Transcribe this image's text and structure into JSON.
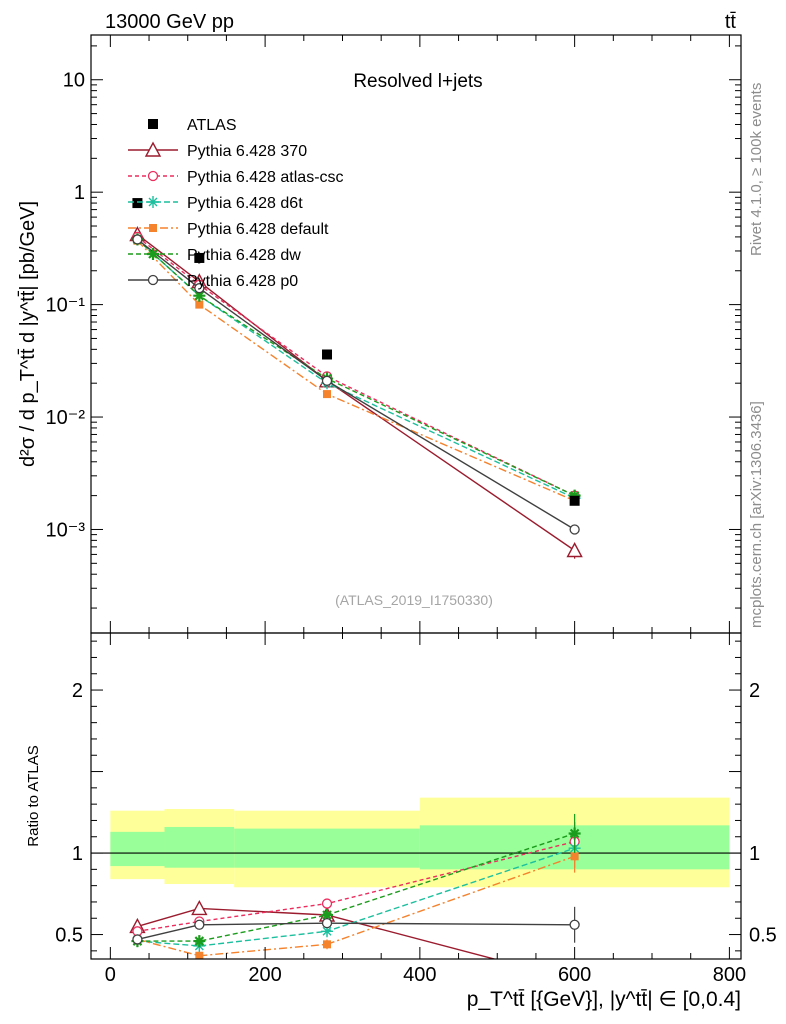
{
  "header": {
    "energy": "13000 GeV pp",
    "process": "tt̄"
  },
  "side_labels": {
    "rivet": "Rivet 4.1.0, ≥ 100k events",
    "mcplots": "mcplots.cern.ch [arXiv:1306.3436]"
  },
  "chart_data": [
    {
      "type": "line",
      "title": "Resolved l+jets",
      "watermark": "(ATLAS_2019_I1750330)",
      "ylabel": "d²σ / d p_T^tt̄ d |y^tt̄| [pb/GeV]",
      "yscale": "log",
      "ylim": [
        0.00012,
        25
      ],
      "xlim": [
        -25,
        815
      ],
      "ytick_labels": [
        "10⁻³",
        "10⁻²",
        "10⁻¹",
        "1",
        "10"
      ],
      "ytick_values": [
        0.001,
        0.01,
        0.1,
        1,
        10
      ],
      "legend_position": "top-left",
      "x": [
        35,
        115,
        280,
        600
      ],
      "data": {
        "name": "ATLAS",
        "values": [
          0.8,
          0.26,
          0.036,
          0.0018
        ]
      },
      "series": [
        {
          "name": "Pythia 6.428 370",
          "color": "#9b1c2e",
          "dash": "",
          "marker": "triangle",
          "values": [
            0.42,
            0.16,
            0.021,
            0.00065
          ],
          "errors": [
            0,
            0,
            0,
            0.0001
          ]
        },
        {
          "name": "Pythia 6.428 atlas-csc",
          "color": "#ec2d5e",
          "dash": "4,3",
          "marker": "circle-open",
          "values": [
            0.4,
            0.15,
            0.023,
            0.002
          ],
          "errors": [
            0,
            0,
            0,
            0
          ]
        },
        {
          "name": "Pythia 6.428 d6t",
          "color": "#1cbf9e",
          "dash": "6,3",
          "marker": "star",
          "values": [
            0.38,
            0.12,
            0.02,
            0.0019
          ],
          "errors": [
            0,
            0,
            0,
            0
          ]
        },
        {
          "name": "Pythia 6.428 default",
          "color": "#f5822c",
          "dash": "8,3,2,3",
          "marker": "square",
          "values": [
            0.37,
            0.1,
            0.016,
            0.0018
          ],
          "errors": [
            0,
            0,
            0,
            0
          ]
        },
        {
          "name": "Pythia 6.428 dw",
          "color": "#1c9c1c",
          "dash": "5,3",
          "marker": "star-filled",
          "values": [
            0.38,
            0.12,
            0.022,
            0.002
          ],
          "errors": [
            0,
            0,
            0,
            0
          ]
        },
        {
          "name": "Pythia 6.428 p0",
          "color": "#404040",
          "dash": "",
          "marker": "circle-open",
          "values": [
            0.38,
            0.14,
            0.021,
            0.001
          ],
          "errors": [
            0,
            0,
            0,
            8e-05
          ]
        }
      ]
    },
    {
      "type": "line",
      "title": "Ratio to ATLAS",
      "ylabel": "Ratio to ATLAS",
      "xlabel": "p_T^tt̄ [{GeV}], |y^tt̄| ∈ [0,0.4]",
      "ylim": [
        0.35,
        2.35
      ],
      "xlim": [
        -25,
        815
      ],
      "ytick_values": [
        0.5,
        1,
        2
      ],
      "ytick_labels": [
        "0.5",
        "1",
        "2"
      ],
      "xtick_values": [
        0,
        200,
        400,
        600,
        800
      ],
      "xtick_labels": [
        "0",
        "200",
        "400",
        "600",
        "800"
      ],
      "x": [
        35,
        115,
        280,
        600
      ],
      "bands": {
        "bins": [
          [
            0,
            70
          ],
          [
            70,
            160
          ],
          [
            160,
            400
          ],
          [
            400,
            800
          ]
        ],
        "yellow": [
          [
            0.84,
            1.26
          ],
          [
            0.81,
            1.27
          ],
          [
            0.79,
            1.26
          ],
          [
            0.79,
            1.34
          ]
        ],
        "green": [
          [
            0.92,
            1.13
          ],
          [
            0.91,
            1.16
          ],
          [
            0.91,
            1.15
          ],
          [
            0.9,
            1.17
          ]
        ]
      },
      "series": [
        {
          "name": "Pythia 6.428 370",
          "values": [
            0.55,
            0.66,
            0.62,
            0.22
          ],
          "errors": [
            0.01,
            0.01,
            0.02,
            0.05
          ]
        },
        {
          "name": "Pythia 6.428 atlas-csc",
          "values": [
            0.52,
            0.58,
            0.69,
            1.07
          ],
          "errors": [
            0.01,
            0.02,
            0.03,
            0.12
          ]
        },
        {
          "name": "Pythia 6.428 d6t",
          "values": [
            0.46,
            0.43,
            0.52,
            1.03
          ],
          "errors": [
            0.01,
            0.02,
            0.03,
            0.12
          ]
        },
        {
          "name": "Pythia 6.428 default",
          "values": [
            0.47,
            0.37,
            0.44,
            0.98
          ],
          "errors": [
            0.01,
            0.02,
            0.03,
            0.1
          ]
        },
        {
          "name": "Pythia 6.428 dw",
          "values": [
            0.46,
            0.46,
            0.62,
            1.12
          ],
          "errors": [
            0.01,
            0.02,
            0.03,
            0.12
          ]
        },
        {
          "name": "Pythia 6.428 p0",
          "values": [
            0.47,
            0.56,
            0.57,
            0.56
          ],
          "errors": [
            0.01,
            0.01,
            0.02,
            0.11
          ]
        }
      ]
    }
  ]
}
